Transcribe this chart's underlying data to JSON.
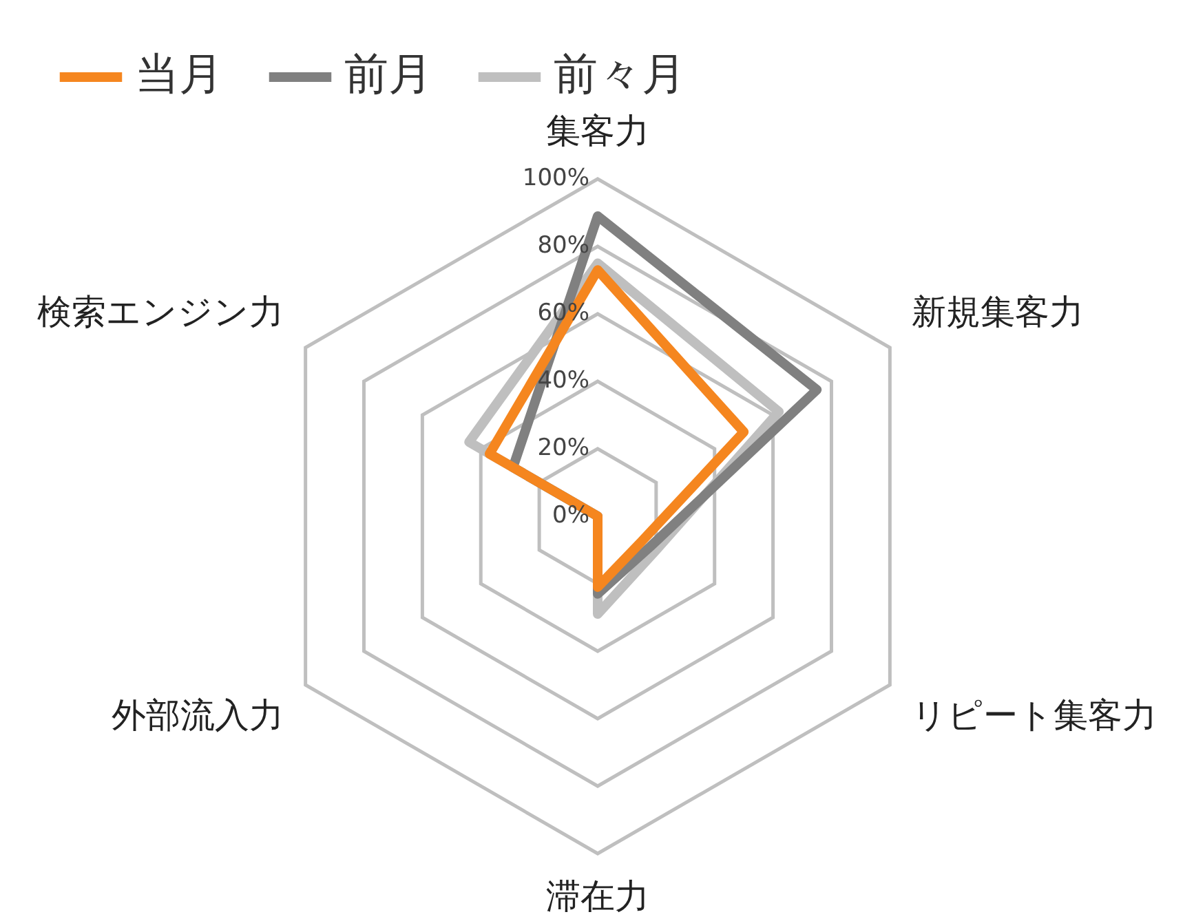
{
  "chart_data": {
    "type": "radar",
    "categories": [
      "集客力",
      "新規集客力",
      "リピート集客力",
      "滞在力",
      "外部流入力",
      "検索エンジン力"
    ],
    "series": [
      {
        "name": "当月",
        "color": "#f5861f",
        "values": [
          73,
          50,
          15,
          21,
          0,
          37
        ]
      },
      {
        "name": "前月",
        "color": "#808080",
        "values": [
          89,
          75,
          18,
          23,
          0,
          29
        ]
      },
      {
        "name": "前々月",
        "color": "#bfbfbf",
        "values": [
          75,
          62,
          20,
          29,
          0,
          44
        ]
      }
    ],
    "ylim": [
      0,
      100
    ],
    "yticks": [
      {
        "value": 0,
        "label": "0%"
      },
      {
        "value": 20,
        "label": "20%"
      },
      {
        "value": 40,
        "label": "40%"
      },
      {
        "value": 60,
        "label": "60%"
      },
      {
        "value": 80,
        "label": "80%"
      },
      {
        "value": 100,
        "label": "100%"
      }
    ],
    "grid": true,
    "legend": "top",
    "marker": "none",
    "line_style": "solid"
  }
}
